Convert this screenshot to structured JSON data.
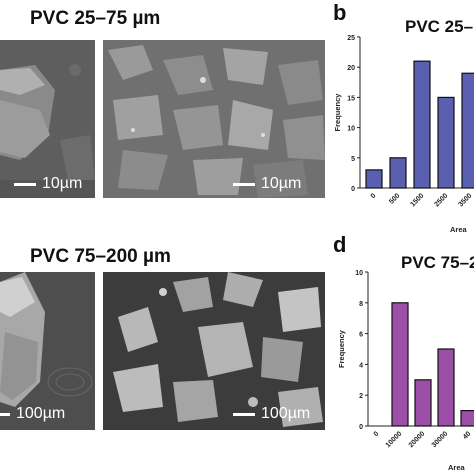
{
  "panels": {
    "top_title": "PVC 25–75 µm",
    "bottom_title": "PVC 75–200 µm",
    "scale_top_left": "10µm",
    "scale_top_right": "10µm",
    "scale_bottom_left": "100µm",
    "scale_bottom_right": "100µm",
    "letter_b": "b",
    "letter_d": "d"
  },
  "chart_data": [
    {
      "type": "bar",
      "title": "PVC 25–",
      "categories": [
        "0",
        "500",
        "1500",
        "2500",
        "3500"
      ],
      "values": [
        3,
        5,
        21,
        15,
        19
      ],
      "ylabel": "Frequency",
      "xlabel": "Area",
      "ylim": [
        0,
        25
      ],
      "yticks": [
        "0",
        "5",
        "10",
        "15",
        "20",
        "25"
      ],
      "bar_color": "#5b5fb0"
    },
    {
      "type": "bar",
      "title": "PVC 75–2",
      "categories": [
        "0",
        "10000",
        "20000",
        "30000",
        "40"
      ],
      "values": [
        0,
        8,
        3,
        5,
        1
      ],
      "ylabel": "Frequency",
      "xlabel": "Area",
      "ylim": [
        0,
        10
      ],
      "yticks": [
        "0",
        "2",
        "4",
        "6",
        "8",
        "10"
      ],
      "bar_color": "#9b4fa6"
    }
  ]
}
